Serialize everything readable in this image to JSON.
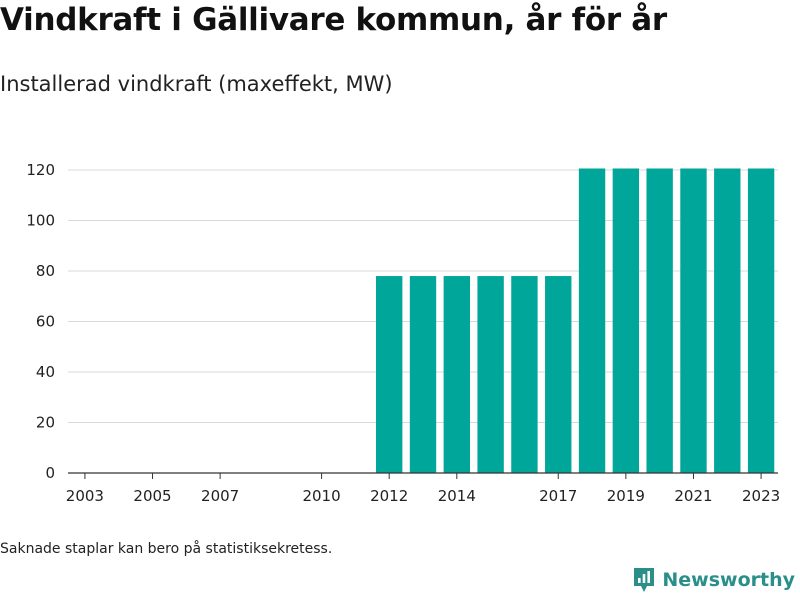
{
  "title": "Vindkraft i Gällivare kommun, år för år",
  "subtitle": "Installerad vindkraft (maxeffekt, MW)",
  "footnote": "Saknade staplar kan bero på statistiksekretess.",
  "brand": {
    "name": "Newsworthy",
    "icon": "newsworthy-logo-icon",
    "color": "#2a8f8a"
  },
  "chart_data": {
    "type": "bar",
    "title": "Vindkraft i Gällivare kommun, år för år",
    "subtitle": "Installerad vindkraft (maxeffekt, MW)",
    "xlabel": "",
    "ylabel": "",
    "categories": [
      "2003",
      "2004",
      "2005",
      "2006",
      "2007",
      "2008",
      "2009",
      "2010",
      "2011",
      "2012",
      "2013",
      "2014",
      "2015",
      "2016",
      "2017",
      "2018",
      "2019",
      "2020",
      "2021",
      "2022",
      "2023"
    ],
    "values": [
      0,
      0,
      0,
      0,
      0,
      0,
      0,
      0,
      0,
      78,
      78,
      78,
      78,
      78,
      78,
      120.6,
      120.6,
      120.6,
      120.6,
      120.6,
      120.6
    ],
    "x_tick_labels": [
      "2003",
      "2005",
      "2007",
      "2010",
      "2012",
      "2014",
      "2017",
      "2019",
      "2021",
      "2023"
    ],
    "yticks": [
      0,
      20,
      40,
      60,
      80,
      100,
      120
    ],
    "ylim": [
      0,
      121
    ],
    "grid": true,
    "bar_color": "#00a69a"
  }
}
